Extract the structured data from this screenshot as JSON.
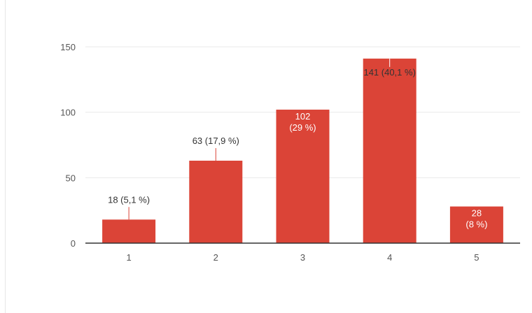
{
  "chart_data": {
    "type": "bar",
    "categories": [
      "1",
      "2",
      "3",
      "4",
      "5"
    ],
    "values": [
      18,
      63,
      102,
      141,
      28
    ],
    "data_labels": [
      [
        "18 (5,1 %)"
      ],
      [
        "63 (17,9 %)"
      ],
      [
        "102",
        "(29 %)"
      ],
      [
        "141 (40,1 %)"
      ],
      [
        "28",
        "(8 %)"
      ]
    ],
    "label_inside": [
      false,
      false,
      true,
      true,
      true
    ],
    "y_ticks": [
      "0",
      "50",
      "100",
      "150"
    ],
    "y_tick_values": [
      0,
      50,
      100,
      150
    ],
    "ylim": [
      0,
      150
    ],
    "grid": true,
    "legend": "none",
    "bar_color": "#db4437",
    "title": "",
    "xlabel": "",
    "ylabel": ""
  }
}
